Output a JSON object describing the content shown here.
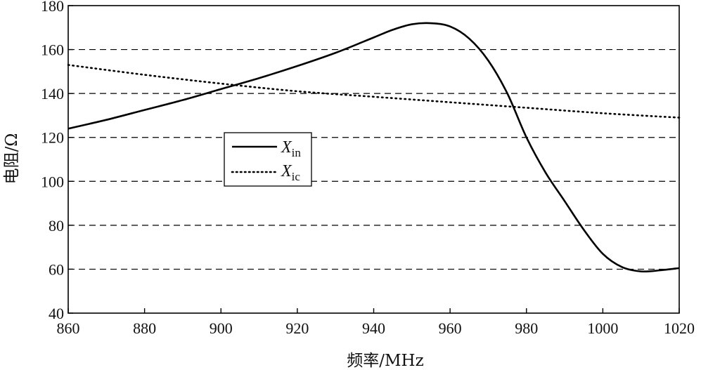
{
  "chart_data": {
    "type": "line",
    "xlabel": "频率/MHz",
    "ylabel": "电阻/Ω",
    "xlim": [
      860,
      1020
    ],
    "ylim": [
      40,
      180
    ],
    "xticks": [
      860,
      880,
      900,
      920,
      940,
      960,
      980,
      1000,
      1020
    ],
    "yticks": [
      40,
      60,
      80,
      100,
      120,
      140,
      160,
      180
    ],
    "grid": "horizontal dashed",
    "legend_position": "center-left",
    "series": [
      {
        "name": "X_in",
        "label_main": "X",
        "label_sub": "in",
        "style": "solid",
        "color": "#000000",
        "x": [
          860,
          870,
          880,
          890,
          900,
          910,
          920,
          930,
          940,
          945,
          950,
          955,
          960,
          965,
          970,
          975,
          980,
          985,
          990,
          995,
          1000,
          1005,
          1010,
          1015,
          1020
        ],
        "y": [
          124,
          128,
          132.5,
          137,
          142,
          147,
          152.5,
          158.5,
          165.5,
          169,
          171.5,
          172,
          170.5,
          165,
          155,
          140,
          120,
          104,
          91,
          78,
          67,
          61,
          59,
          59.5,
          60.5
        ]
      },
      {
        "name": "X_ic",
        "label_main": "X",
        "label_sub": "ic",
        "style": "dotted",
        "color": "#000000",
        "x": [
          860,
          880,
          900,
          920,
          940,
          960,
          980,
          1000,
          1020
        ],
        "y": [
          153,
          148.5,
          144.5,
          141,
          138.5,
          136,
          133.5,
          131,
          129
        ]
      }
    ]
  }
}
